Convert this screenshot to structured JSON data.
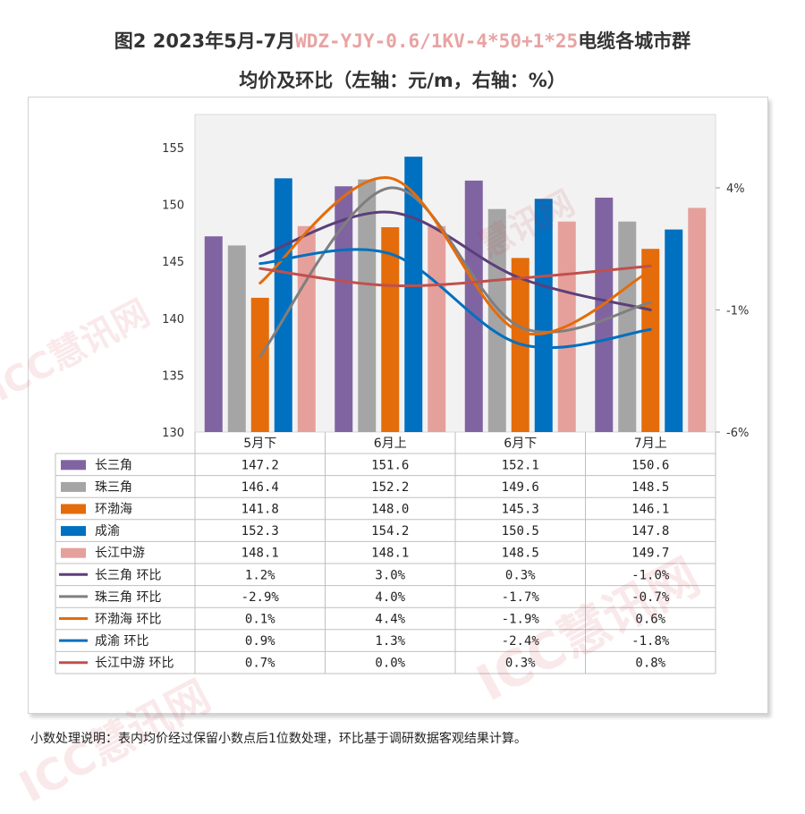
{
  "title": {
    "prefix": "图2 2023年5月-7月",
    "highlight": "WDZ-YJY-0.6/1KV-4*50+1*25",
    "suffix": "电缆各城市群",
    "line2": "均价及环比（左轴：元/m，右轴：%）"
  },
  "note": "小数处理说明：表内均价经过保留小数点后1位数处理，环比基于调研数据客观结果计算。",
  "watermark": [
    "ICC慧讯网",
    "慧讯网",
    "ICC慧讯网",
    "ICC慧讯网"
  ],
  "chart_data": {
    "type": "bar",
    "categories": [
      "5月下",
      "6月上",
      "6月下",
      "7月上"
    ],
    "ylim": [
      130,
      155
    ],
    "yticks": [
      130,
      135,
      140,
      145,
      150,
      155
    ],
    "y2lim": [
      -6,
      4
    ],
    "y2ticks": [
      "4%",
      "-1%",
      "-6%"
    ],
    "series": [
      {
        "name": "长三角",
        "values": [
          147.2,
          151.6,
          152.1,
          150.6
        ],
        "color": "#8064a2"
      },
      {
        "name": "珠三角",
        "values": [
          146.4,
          152.2,
          149.6,
          148.5
        ],
        "color": "#a5a5a5"
      },
      {
        "name": "环渤海",
        "values": [
          141.8,
          148.0,
          145.3,
          146.1
        ],
        "color": "#e46c0a"
      },
      {
        "name": "成渝",
        "values": [
          152.3,
          154.2,
          150.5,
          147.8
        ],
        "color": "#0070c0"
      },
      {
        "name": "长江中游",
        "values": [
          148.1,
          148.1,
          148.5,
          149.7
        ],
        "color": "#e6a09c"
      }
    ],
    "line_series": [
      {
        "name": "长三角 环比",
        "values": [
          1.2,
          3.0,
          0.3,
          -1.0
        ],
        "labels": [
          "1.2%",
          "3.0%",
          "0.3%",
          "-1.0%"
        ],
        "color": "#5b3f7a"
      },
      {
        "name": "珠三角 环比",
        "values": [
          -2.9,
          4.0,
          -1.7,
          -0.7
        ],
        "labels": [
          "-2.9%",
          "4.0%",
          "-1.7%",
          "-0.7%"
        ],
        "color": "#7f7f7f"
      },
      {
        "name": "环渤海 环比",
        "values": [
          0.1,
          4.4,
          -1.9,
          0.6
        ],
        "labels": [
          "0.1%",
          "4.4%",
          "-1.9%",
          "0.6%"
        ],
        "color": "#e46c0a"
      },
      {
        "name": "成渝 环比",
        "values": [
          0.9,
          1.3,
          -2.4,
          -1.8
        ],
        "labels": [
          "0.9%",
          "1.3%",
          "-2.4%",
          "-1.8%"
        ],
        "color": "#0070c0"
      },
      {
        "name": "长江中游 环比",
        "values": [
          0.7,
          0.0,
          0.3,
          0.8
        ],
        "labels": [
          "0.7%",
          "0.0%",
          "0.3%",
          "0.8%"
        ],
        "color": "#c0504d"
      }
    ]
  }
}
